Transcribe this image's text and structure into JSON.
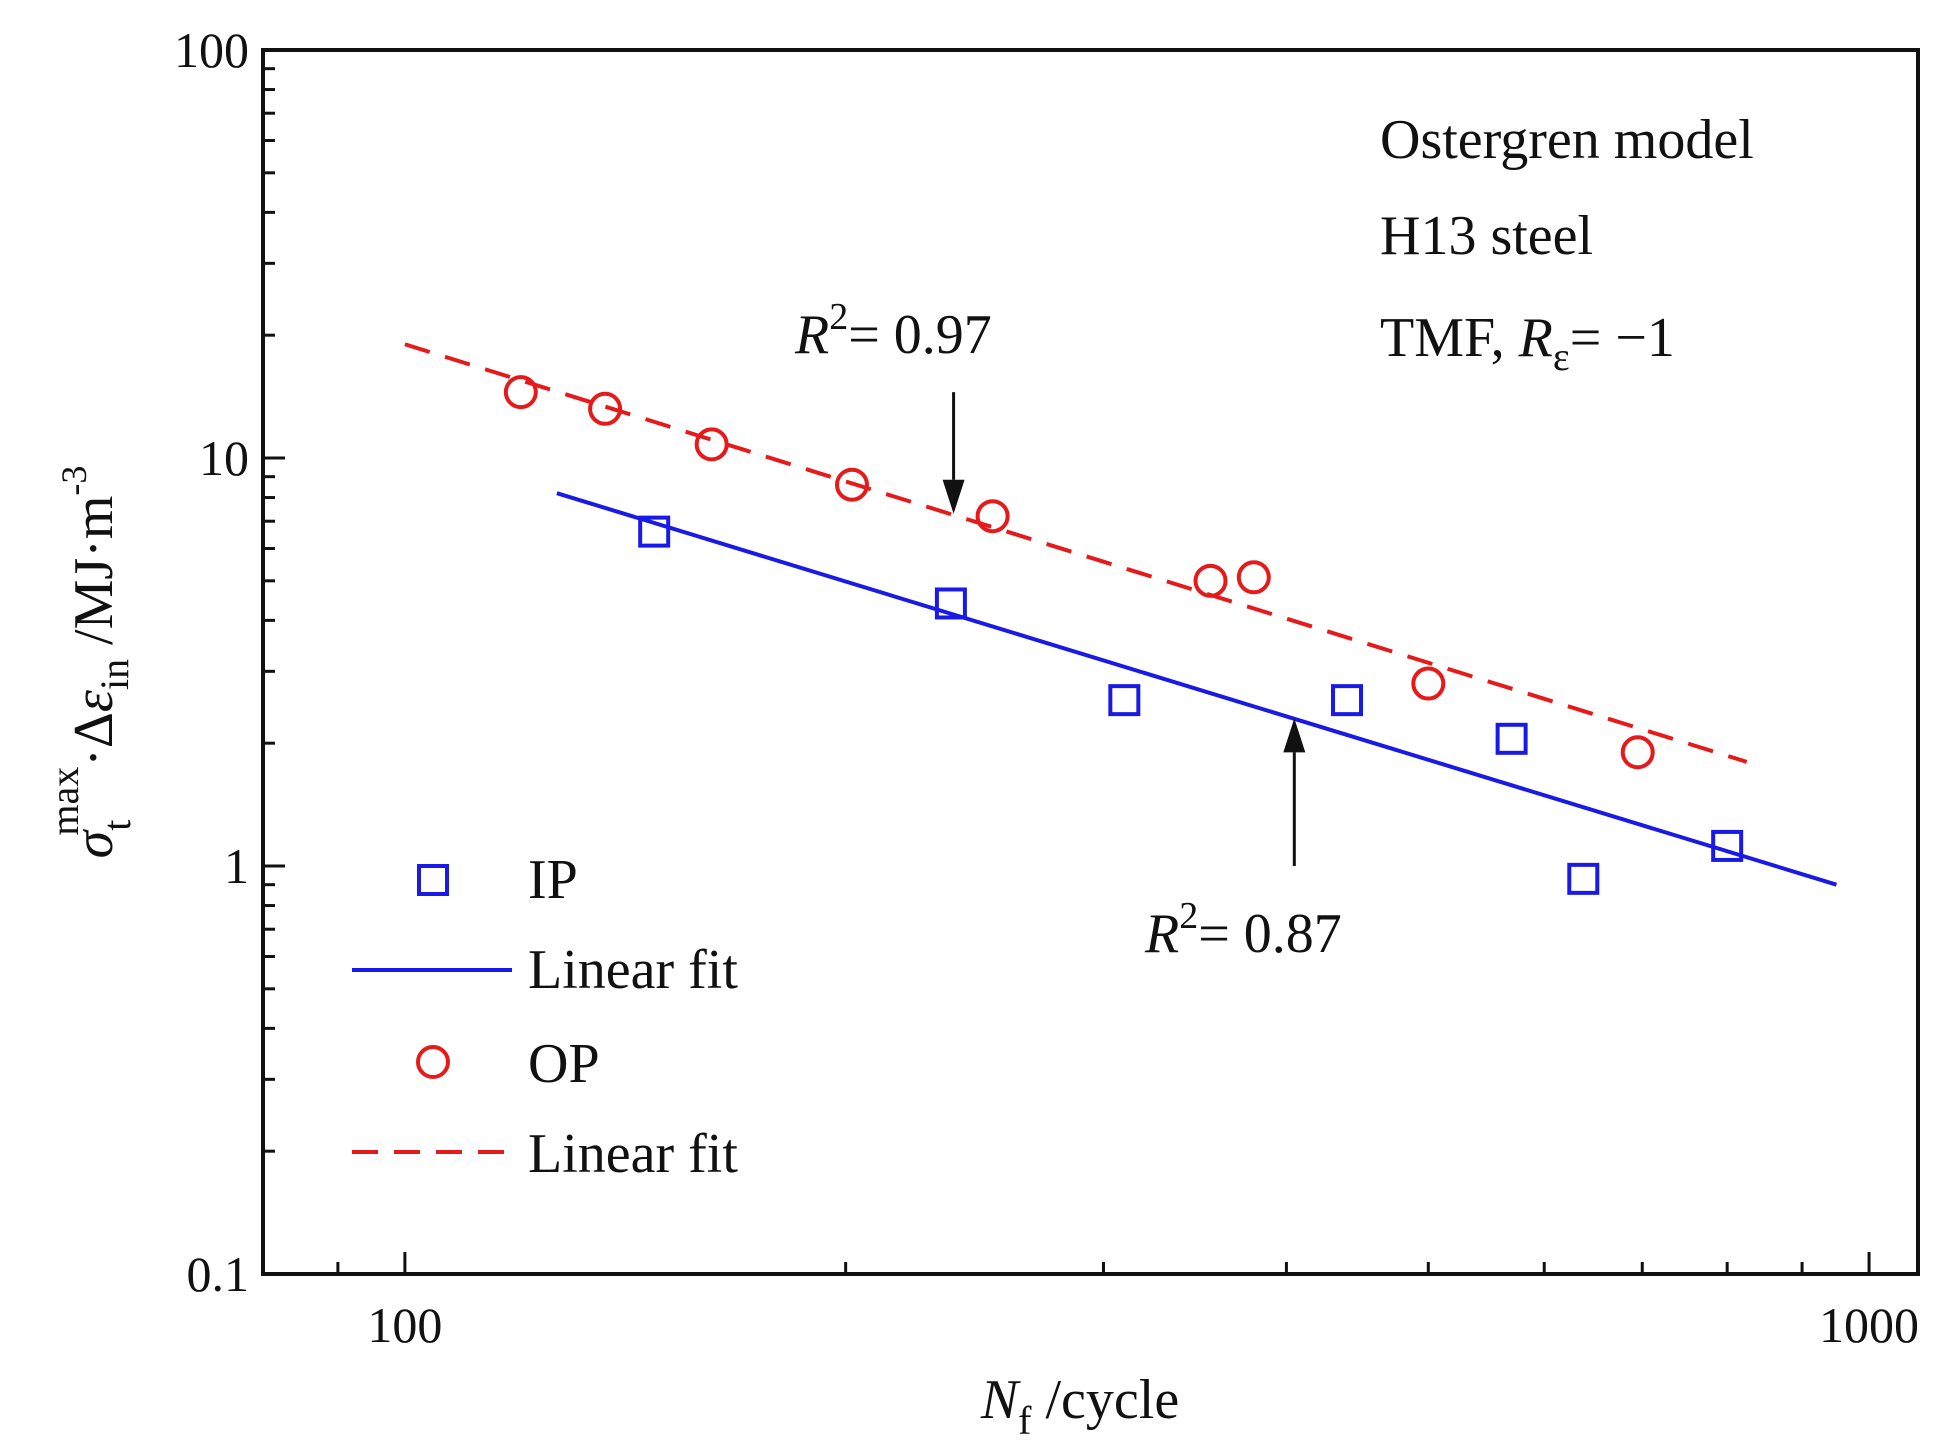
{
  "chart_data": {
    "type": "scatter",
    "x_scale": "log",
    "y_scale": "log",
    "xlim": [
      80,
      1080
    ],
    "ylim": [
      0.1,
      100
    ],
    "x_major_ticks": [
      100,
      1000
    ],
    "x_minor_ticks": [
      90,
      200,
      300,
      400,
      500,
      600,
      700,
      800,
      900
    ],
    "y_major_ticks": [
      0.1,
      1,
      10,
      100
    ],
    "y_tick_labels": [
      "0.1",
      "1",
      "10",
      "100"
    ],
    "x_tick_labels": [
      "100",
      "1000"
    ],
    "xlabel": {
      "var": "N",
      "sub": "f",
      "unit": " /cycle"
    },
    "ylabel": {
      "sym": "σ",
      "sub": "t",
      "sup": "max",
      "mid": "·Δ",
      "eps": "ε",
      "eps_sub": "in",
      "unit": " /MJ·m",
      "unit_sup": "-3"
    },
    "annotations": {
      "lines": [
        "Ostergren model",
        "H13 steel"
      ],
      "tmf_prefix": "TMF, ",
      "tmf_var": "R",
      "tmf_sub": "ε",
      "tmf_suffix": "= −1",
      "r2_op": {
        "var": "R",
        "sup": "2",
        "text": "= 0.97",
        "arrow_x": 237,
        "arrow_from_y": 7.3,
        "arrow_to_y": 14.5
      },
      "r2_ip": {
        "var": "R",
        "sup": "2",
        "text": "= 0.87",
        "arrow_x": 405,
        "arrow_from_y": 2.3,
        "arrow_to_y": 1.0
      }
    },
    "series": [
      {
        "name": "IP",
        "marker": "square",
        "color": "#1a1ae6",
        "x": [
          148,
          236,
          310,
          440,
          570,
          638,
          800
        ],
        "y": [
          6.6,
          4.4,
          2.55,
          2.55,
          2.05,
          0.93,
          1.12
        ]
      },
      {
        "name": "Linear fit",
        "style": "solid",
        "color": "#1a1ae6",
        "x": [
          127,
          950
        ],
        "y": [
          8.2,
          0.9
        ]
      },
      {
        "name": "OP",
        "marker": "circle",
        "color": "#e61a1a",
        "x": [
          120,
          137,
          162,
          202,
          252,
          355,
          380,
          500,
          695
        ],
        "y": [
          14.5,
          13.2,
          10.8,
          8.6,
          7.2,
          5.0,
          5.1,
          2.8,
          1.9
        ]
      },
      {
        "name": "Linear fit",
        "style": "dashed",
        "color": "#e61a1a",
        "x": [
          100,
          825
        ],
        "y": [
          19,
          1.8
        ]
      }
    ],
    "legend": {
      "position": "bottom-left",
      "items": [
        {
          "label": "IP",
          "kind": "square",
          "color": "#1a1ae6"
        },
        {
          "label": "Linear fit",
          "kind": "solid",
          "color": "#1a1ae6"
        },
        {
          "label": "OP",
          "kind": "circle",
          "color": "#e61a1a"
        },
        {
          "label": "Linear fit",
          "kind": "dashed",
          "color": "#e61a1a"
        }
      ]
    }
  }
}
